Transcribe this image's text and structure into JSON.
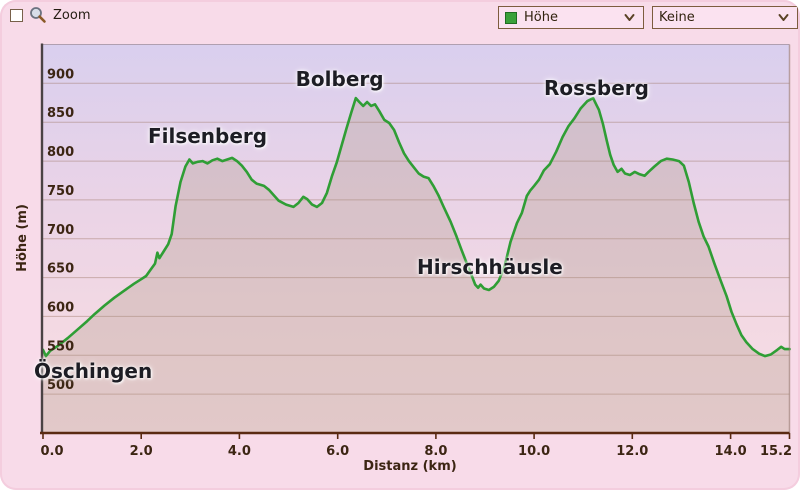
{
  "toolbar": {
    "zoom_label": "Zoom",
    "zoom_checkbox_checked": false,
    "series_dropdown": {
      "value": "Höhe",
      "swatch_color": "#3aa13a"
    },
    "overlay_dropdown": {
      "value": "Keine"
    }
  },
  "chart_data": {
    "type": "area",
    "title": "",
    "xlabel": "Distanz  (km)",
    "ylabel": "Höhe (m)",
    "xlim": [
      0,
      15.2
    ],
    "ylim": [
      450,
      950
    ],
    "grid": "horizontal",
    "legend": "none",
    "x_ticks": {
      "values": [
        0,
        2,
        4,
        6,
        8,
        10,
        12,
        14,
        15.2
      ],
      "labels": [
        "0.0",
        "2.0",
        "4.0",
        "6.0",
        "8.0",
        "10.0",
        "12.0",
        "14.0",
        "15.2"
      ]
    },
    "y_ticks": {
      "values": [
        500,
        550,
        600,
        650,
        700,
        750,
        800,
        850,
        900
      ],
      "labels": [
        "500",
        "550",
        "600",
        "650",
        "700",
        "750",
        "800",
        "850",
        "900"
      ]
    },
    "colors": {
      "bg_top": "#d9cfee",
      "bg_mid1": "#e9d3e7",
      "bg_mid2": "#f3d9e3",
      "bg_bottom": "#f8dee6",
      "grid": "rgba(156,116,98,0.45)",
      "axis_left": "#4a4244",
      "axis_bottom": "#5a2a12",
      "tick_label": "#3c2513"
    },
    "series": [
      {
        "name": "Höhe",
        "color": "#2f9e35",
        "fill": "rgba(170,148,126,0.28)",
        "points": [
          [
            0,
            557
          ],
          [
            0.06,
            549
          ],
          [
            0.15,
            556
          ],
          [
            0.3,
            562
          ],
          [
            0.5,
            572
          ],
          [
            0.7,
            583
          ],
          [
            0.9,
            594
          ],
          [
            1.05,
            603
          ],
          [
            1.25,
            614
          ],
          [
            1.45,
            624
          ],
          [
            1.65,
            633
          ],
          [
            1.85,
            642
          ],
          [
            2,
            648
          ],
          [
            2.1,
            652
          ],
          [
            2.2,
            661
          ],
          [
            2.28,
            668
          ],
          [
            2.33,
            682
          ],
          [
            2.37,
            675
          ],
          [
            2.45,
            683
          ],
          [
            2.55,
            693
          ],
          [
            2.62,
            706
          ],
          [
            2.7,
            742
          ],
          [
            2.8,
            773
          ],
          [
            2.9,
            793
          ],
          [
            2.98,
            802
          ],
          [
            3.05,
            797
          ],
          [
            3.15,
            799
          ],
          [
            3.25,
            800
          ],
          [
            3.35,
            797
          ],
          [
            3.45,
            801
          ],
          [
            3.55,
            803
          ],
          [
            3.65,
            800
          ],
          [
            3.75,
            802
          ],
          [
            3.85,
            804
          ],
          [
            3.95,
            800
          ],
          [
            4.05,
            794
          ],
          [
            4.15,
            786
          ],
          [
            4.25,
            776
          ],
          [
            4.35,
            771
          ],
          [
            4.5,
            768
          ],
          [
            4.6,
            763
          ],
          [
            4.7,
            756
          ],
          [
            4.8,
            749
          ],
          [
            4.95,
            744
          ],
          [
            5.1,
            741
          ],
          [
            5.2,
            746
          ],
          [
            5.3,
            754
          ],
          [
            5.38,
            751
          ],
          [
            5.48,
            744
          ],
          [
            5.58,
            741
          ],
          [
            5.68,
            746
          ],
          [
            5.78,
            759
          ],
          [
            5.88,
            780
          ],
          [
            5.98,
            798
          ],
          [
            6.08,
            820
          ],
          [
            6.18,
            842
          ],
          [
            6.28,
            863
          ],
          [
            6.37,
            881
          ],
          [
            6.44,
            876
          ],
          [
            6.52,
            871
          ],
          [
            6.6,
            876
          ],
          [
            6.68,
            871
          ],
          [
            6.76,
            873
          ],
          [
            6.85,
            864
          ],
          [
            6.95,
            853
          ],
          [
            7.05,
            849
          ],
          [
            7.15,
            840
          ],
          [
            7.25,
            824
          ],
          [
            7.35,
            810
          ],
          [
            7.45,
            800
          ],
          [
            7.55,
            792
          ],
          [
            7.65,
            784
          ],
          [
            7.75,
            780
          ],
          [
            7.85,
            778
          ],
          [
            7.95,
            768
          ],
          [
            8.05,
            756
          ],
          [
            8.15,
            742
          ],
          [
            8.3,
            722
          ],
          [
            8.42,
            703
          ],
          [
            8.52,
            686
          ],
          [
            8.62,
            670
          ],
          [
            8.72,
            654
          ],
          [
            8.8,
            641
          ],
          [
            8.86,
            637
          ],
          [
            8.91,
            641
          ],
          [
            8.98,
            636
          ],
          [
            9.08,
            634
          ],
          [
            9.18,
            638
          ],
          [
            9.28,
            646
          ],
          [
            9.4,
            665
          ],
          [
            9.52,
            696
          ],
          [
            9.65,
            720
          ],
          [
            9.75,
            733
          ],
          [
            9.85,
            755
          ],
          [
            9.92,
            762
          ],
          [
            10,
            768
          ],
          [
            10.1,
            776
          ],
          [
            10.2,
            788
          ],
          [
            10.32,
            796
          ],
          [
            10.45,
            812
          ],
          [
            10.58,
            831
          ],
          [
            10.7,
            845
          ],
          [
            10.82,
            855
          ],
          [
            10.95,
            868
          ],
          [
            11.08,
            877
          ],
          [
            11.2,
            881
          ],
          [
            11.27,
            872
          ],
          [
            11.32,
            866
          ],
          [
            11.4,
            848
          ],
          [
            11.48,
            826
          ],
          [
            11.55,
            808
          ],
          [
            11.62,
            795
          ],
          [
            11.7,
            786
          ],
          [
            11.78,
            790
          ],
          [
            11.85,
            784
          ],
          [
            11.95,
            782
          ],
          [
            12.05,
            786
          ],
          [
            12.15,
            783
          ],
          [
            12.25,
            781
          ],
          [
            12.33,
            786
          ],
          [
            12.45,
            793
          ],
          [
            12.58,
            800
          ],
          [
            12.7,
            803
          ],
          [
            12.82,
            802
          ],
          [
            12.95,
            800
          ],
          [
            13.05,
            794
          ],
          [
            13.15,
            773
          ],
          [
            13.25,
            746
          ],
          [
            13.35,
            722
          ],
          [
            13.45,
            703
          ],
          [
            13.55,
            690
          ],
          [
            13.67,
            668
          ],
          [
            13.8,
            646
          ],
          [
            13.92,
            626
          ],
          [
            14.02,
            606
          ],
          [
            14.12,
            590
          ],
          [
            14.22,
            576
          ],
          [
            14.32,
            567
          ],
          [
            14.45,
            558
          ],
          [
            14.58,
            552
          ],
          [
            14.7,
            549
          ],
          [
            14.82,
            551
          ],
          [
            14.95,
            557
          ],
          [
            15.03,
            561
          ],
          [
            15.1,
            558
          ],
          [
            15.2,
            558
          ]
        ]
      }
    ],
    "annotations": [
      {
        "label": "Öschingen",
        "km": 1.02,
        "elev": 530
      },
      {
        "label": "Filsenberg",
        "km": 3.35,
        "elev": 832
      },
      {
        "label": "Bolberg",
        "km": 6.04,
        "elev": 906
      },
      {
        "label": "Hirschhäusle",
        "km": 9.1,
        "elev": 664
      },
      {
        "label": "Rossberg",
        "km": 11.27,
        "elev": 894
      }
    ]
  }
}
